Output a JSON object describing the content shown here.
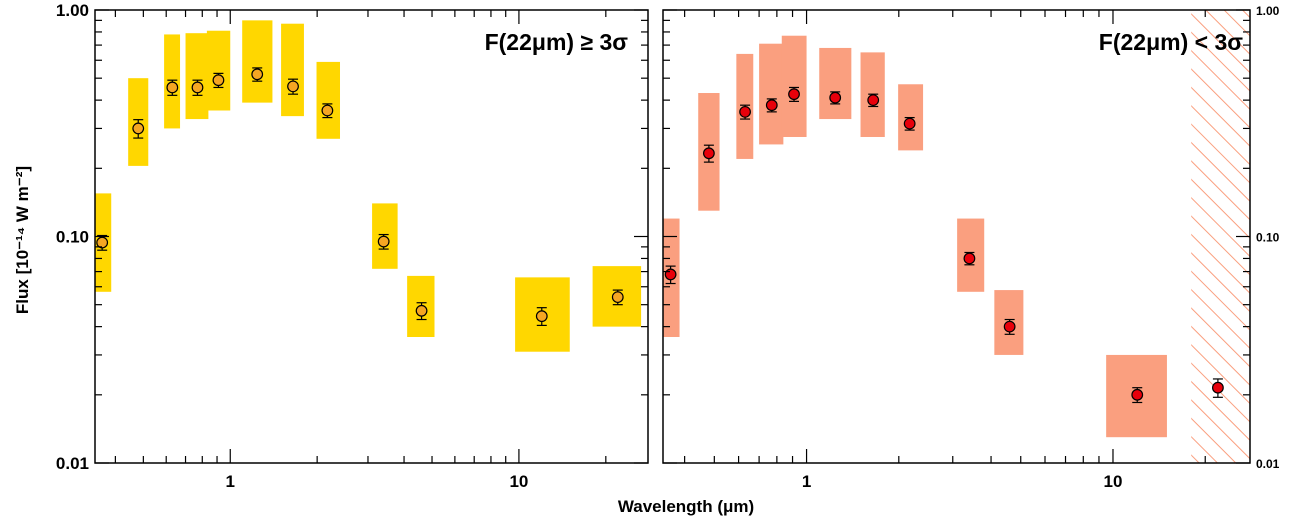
{
  "figure": {
    "xlabel": "Wavelength (μm)",
    "ylabel": "Flux [10⁻¹⁴ W m⁻²]"
  },
  "chart_data": [
    {
      "type": "scatter",
      "panel": "left",
      "title": "F(22μm) ≥ 3σ",
      "xscale": "log",
      "yscale": "log",
      "xlim": [
        0.34,
        28
      ],
      "ylim": [
        0.01,
        1.0
      ],
      "x_ticks": [
        1,
        10
      ],
      "x_tick_labels": [
        "1",
        "10"
      ],
      "y_ticks": [
        0.01,
        0.1,
        1.0
      ],
      "y_tick_labels": [
        "0.01",
        "0.10",
        "1.00"
      ],
      "y_tick_labels_side": "left",
      "marker_color": "#f5a623",
      "range_box_color": "#ffd700",
      "points": [
        {
          "x": 0.36,
          "y": 0.094,
          "yerr": 0.007,
          "box_x": [
            0.335,
            0.387
          ],
          "box_y": [
            0.057,
            0.155
          ]
        },
        {
          "x": 0.48,
          "y": 0.3,
          "yerr": 0.028,
          "box_x": [
            0.443,
            0.52
          ],
          "box_y": [
            0.205,
            0.5
          ]
        },
        {
          "x": 0.63,
          "y": 0.455,
          "yerr": 0.035,
          "box_x": [
            0.59,
            0.67
          ],
          "box_y": [
            0.3,
            0.78
          ]
        },
        {
          "x": 0.77,
          "y": 0.455,
          "yerr": 0.035,
          "box_x": [
            0.7,
            0.84
          ],
          "box_y": [
            0.33,
            0.79
          ]
        },
        {
          "x": 0.91,
          "y": 0.49,
          "yerr": 0.035,
          "box_x": [
            0.83,
            1.0
          ],
          "box_y": [
            0.36,
            0.81
          ]
        },
        {
          "x": 1.24,
          "y": 0.52,
          "yerr": 0.035,
          "box_x": [
            1.1,
            1.4
          ],
          "box_y": [
            0.39,
            0.9
          ]
        },
        {
          "x": 1.65,
          "y": 0.46,
          "yerr": 0.035,
          "box_x": [
            1.5,
            1.8
          ],
          "box_y": [
            0.34,
            0.87
          ]
        },
        {
          "x": 2.17,
          "y": 0.36,
          "yerr": 0.025,
          "box_x": [
            1.99,
            2.4
          ],
          "box_y": [
            0.27,
            0.59
          ]
        },
        {
          "x": 3.4,
          "y": 0.095,
          "yerr": 0.007,
          "box_x": [
            3.1,
            3.8
          ],
          "box_y": [
            0.072,
            0.14
          ]
        },
        {
          "x": 4.6,
          "y": 0.047,
          "yerr": 0.004,
          "box_x": [
            4.1,
            5.1
          ],
          "box_y": [
            0.036,
            0.067
          ]
        },
        {
          "x": 12,
          "y": 0.0445,
          "yerr": 0.004,
          "box_x": [
            9.7,
            15.0
          ],
          "box_y": [
            0.031,
            0.066
          ]
        },
        {
          "x": 22,
          "y": 0.054,
          "yerr": 0.004,
          "box_x": [
            18.0,
            26.5
          ],
          "box_y": [
            0.04,
            0.074
          ]
        }
      ]
    },
    {
      "type": "scatter",
      "panel": "right",
      "title": "F(22μm) < 3σ",
      "xscale": "log",
      "yscale": "log",
      "xlim": [
        0.34,
        28
      ],
      "ylim": [
        0.01,
        1.0
      ],
      "x_ticks": [
        1,
        10
      ],
      "x_tick_labels": [
        "1",
        "10"
      ],
      "y_ticks": [
        0.01,
        0.1,
        1.0
      ],
      "y_tick_labels": [
        "0.01",
        "0.10",
        "1.00"
      ],
      "y_tick_labels_side": "right",
      "marker_color": "#e8000b",
      "range_box_color": "#fa9f7f",
      "hatched_region_x": [
        18,
        28
      ],
      "points": [
        {
          "x": 0.36,
          "y": 0.068,
          "yerr": 0.006,
          "box_x": [
            0.338,
            0.385
          ],
          "box_y": [
            0.036,
            0.12
          ]
        },
        {
          "x": 0.48,
          "y": 0.233,
          "yerr": 0.02,
          "box_x": [
            0.443,
            0.52
          ],
          "box_y": [
            0.13,
            0.43
          ]
        },
        {
          "x": 0.63,
          "y": 0.355,
          "yerr": 0.025,
          "box_x": [
            0.59,
            0.67
          ],
          "box_y": [
            0.22,
            0.64
          ]
        },
        {
          "x": 0.77,
          "y": 0.38,
          "yerr": 0.025,
          "box_x": [
            0.7,
            0.84
          ],
          "box_y": [
            0.255,
            0.71
          ]
        },
        {
          "x": 0.91,
          "y": 0.425,
          "yerr": 0.03,
          "box_x": [
            0.83,
            1.0
          ],
          "box_y": [
            0.275,
            0.77
          ]
        },
        {
          "x": 1.24,
          "y": 0.41,
          "yerr": 0.025,
          "box_x": [
            1.1,
            1.4
          ],
          "box_y": [
            0.33,
            0.68
          ]
        },
        {
          "x": 1.65,
          "y": 0.4,
          "yerr": 0.025,
          "box_x": [
            1.5,
            1.8
          ],
          "box_y": [
            0.275,
            0.65
          ]
        },
        {
          "x": 2.17,
          "y": 0.315,
          "yerr": 0.02,
          "box_x": [
            1.99,
            2.4
          ],
          "box_y": [
            0.24,
            0.47
          ]
        },
        {
          "x": 3.4,
          "y": 0.08,
          "yerr": 0.005,
          "box_x": [
            3.1,
            3.8
          ],
          "box_y": [
            0.057,
            0.12
          ]
        },
        {
          "x": 4.6,
          "y": 0.04,
          "yerr": 0.003,
          "box_x": [
            4.1,
            5.1
          ],
          "box_y": [
            0.03,
            0.058
          ]
        },
        {
          "x": 12,
          "y": 0.02,
          "yerr": 0.0015,
          "box_x": [
            9.5,
            15.0
          ],
          "box_y": [
            0.013,
            0.03
          ]
        },
        {
          "x": 22,
          "y": 0.0215,
          "yerr": 0.002
        }
      ]
    }
  ]
}
